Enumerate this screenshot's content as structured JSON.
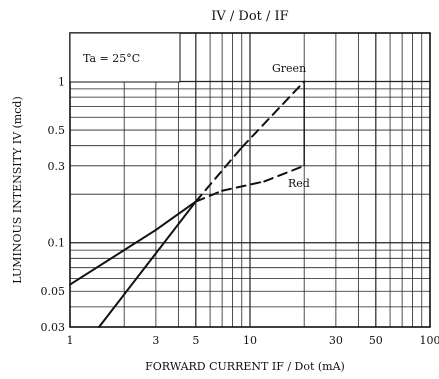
{
  "chart_data": {
    "type": "line",
    "title": "IV / Dot / IF",
    "xlabel": "FORWARD CURRENT  IF / Dot  (mA)",
    "ylabel": "LUMINOUS INTENSITY  IV  (mcd)",
    "annotation": "Ta = 25°C",
    "x_scale": "log",
    "y_scale": "log",
    "xlim": [
      1,
      100
    ],
    "ylim": [
      0.03,
      2
    ],
    "x_ticks": [
      1,
      3,
      5,
      10,
      30,
      50,
      100
    ],
    "x_tick_labels": [
      "1",
      "3",
      "5",
      "10",
      "30",
      "50",
      "100"
    ],
    "y_ticks": [
      0.03,
      0.05,
      0.1,
      0.3,
      0.5,
      1
    ],
    "y_tick_labels": [
      "0.03",
      "0.05",
      "0.1",
      "0.3",
      "0.5",
      "1"
    ],
    "grid": true,
    "colors": {
      "line": "#111111",
      "grid": "#222222",
      "background": "#ffffff"
    },
    "series": [
      {
        "name": "Green",
        "points": [
          {
            "x": 1.45,
            "y": 0.03,
            "style": "solid"
          },
          {
            "x": 5,
            "y": 0.18,
            "style": "solid"
          },
          {
            "x": 9,
            "y": 0.39,
            "style": "dashed"
          },
          {
            "x": 20,
            "y": 1.0,
            "style": "dashed"
          }
        ]
      },
      {
        "name": "Red",
        "points": [
          {
            "x": 1,
            "y": 0.055,
            "style": "solid"
          },
          {
            "x": 3,
            "y": 0.12,
            "style": "solid"
          },
          {
            "x": 5,
            "y": 0.18,
            "style": "solid"
          },
          {
            "x": 7,
            "y": 0.21,
            "style": "dashed"
          },
          {
            "x": 12,
            "y": 0.24,
            "style": "dashed"
          },
          {
            "x": 20,
            "y": 0.3,
            "style": "dashed"
          }
        ]
      }
    ]
  }
}
